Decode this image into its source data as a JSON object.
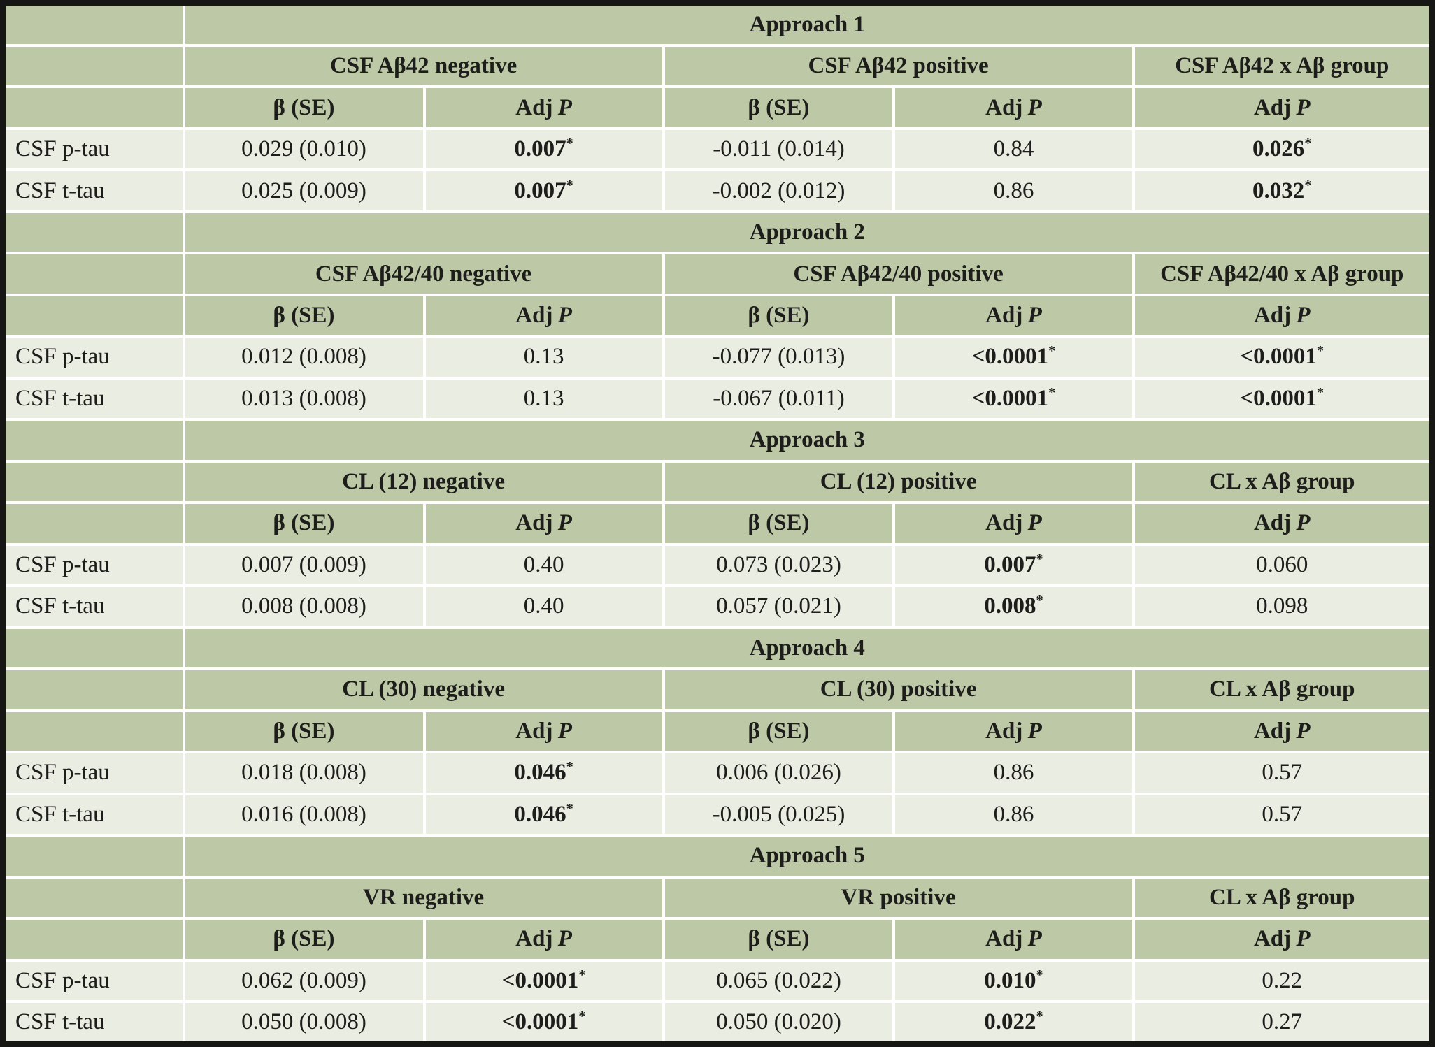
{
  "table": {
    "star_symbol": "*",
    "row_header_blank": "",
    "stat_header": {
      "beta_se": "β (SE)",
      "adj_prefix": "Adj",
      "adj_italic": "P"
    },
    "colors": {
      "header_bg": "#bdc9a6",
      "data_bg": "#eaede1",
      "grid": "#ffffff",
      "frame": "#161614",
      "text": "#1d1d1b"
    },
    "sections": [
      {
        "approach": "Approach 1",
        "negative": "CSF Aβ42 negative",
        "positive": "CSF Aβ42 positive",
        "interaction": "CSF Aβ42 x Aβ group",
        "rows": [
          {
            "label": "CSF p-tau",
            "cells": [
              {
                "v": "0.029 (0.010)"
              },
              {
                "v": "0.007",
                "bold": true,
                "star": true
              },
              {
                "v": "-0.011 (0.014)"
              },
              {
                "v": "0.84"
              },
              {
                "v": "0.026",
                "bold": true,
                "star": true
              }
            ]
          },
          {
            "label": "CSF t-tau",
            "cells": [
              {
                "v": "0.025 (0.009)"
              },
              {
                "v": "0.007",
                "bold": true,
                "star": true
              },
              {
                "v": "-0.002 (0.012)"
              },
              {
                "v": "0.86"
              },
              {
                "v": "0.032",
                "bold": true,
                "star": true
              }
            ]
          }
        ]
      },
      {
        "approach": "Approach 2",
        "negative": "CSF Aβ42/40 negative",
        "positive": "CSF Aβ42/40 positive",
        "interaction": "CSF Aβ42/40 x Aβ group",
        "rows": [
          {
            "label": "CSF p-tau",
            "cells": [
              {
                "v": "0.012 (0.008)"
              },
              {
                "v": "0.13"
              },
              {
                "v": "-0.077 (0.013)"
              },
              {
                "v": "<0.0001",
                "bold": true,
                "star": true
              },
              {
                "v": "<0.0001",
                "bold": true,
                "star": true
              }
            ]
          },
          {
            "label": "CSF t-tau",
            "cells": [
              {
                "v": "0.013 (0.008)"
              },
              {
                "v": "0.13"
              },
              {
                "v": "-0.067 (0.011)"
              },
              {
                "v": "<0.0001",
                "bold": true,
                "star": true
              },
              {
                "v": "<0.0001",
                "bold": true,
                "star": true
              }
            ]
          }
        ]
      },
      {
        "approach": "Approach 3",
        "negative": "CL (12) negative",
        "positive": "CL (12) positive",
        "interaction": "CL x Aβ group",
        "rows": [
          {
            "label": "CSF p-tau",
            "cells": [
              {
                "v": "0.007 (0.009)"
              },
              {
                "v": "0.40"
              },
              {
                "v": "0.073 (0.023)"
              },
              {
                "v": "0.007",
                "bold": true,
                "star": true
              },
              {
                "v": "0.060"
              }
            ]
          },
          {
            "label": "CSF t-tau",
            "cells": [
              {
                "v": "0.008 (0.008)"
              },
              {
                "v": "0.40"
              },
              {
                "v": "0.057 (0.021)"
              },
              {
                "v": "0.008",
                "bold": true,
                "star": true
              },
              {
                "v": "0.098"
              }
            ]
          }
        ]
      },
      {
        "approach": "Approach 4",
        "negative": "CL (30) negative",
        "positive": "CL (30) positive",
        "interaction": "CL x Aβ group",
        "rows": [
          {
            "label": "CSF p-tau",
            "cells": [
              {
                "v": "0.018 (0.008)"
              },
              {
                "v": "0.046",
                "bold": true,
                "star": true
              },
              {
                "v": "0.006 (0.026)"
              },
              {
                "v": "0.86"
              },
              {
                "v": "0.57"
              }
            ]
          },
          {
            "label": "CSF t-tau",
            "cells": [
              {
                "v": "0.016 (0.008)"
              },
              {
                "v": "0.046",
                "bold": true,
                "star": true
              },
              {
                "v": "-0.005 (0.025)"
              },
              {
                "v": "0.86"
              },
              {
                "v": "0.57"
              }
            ]
          }
        ]
      },
      {
        "approach": "Approach 5",
        "negative": "VR negative",
        "positive": "VR positive",
        "interaction": "CL x Aβ group",
        "rows": [
          {
            "label": "CSF p-tau",
            "cells": [
              {
                "v": "0.062 (0.009)"
              },
              {
                "v": "<0.0001",
                "bold": true,
                "star": true
              },
              {
                "v": "0.065 (0.022)"
              },
              {
                "v": "0.010",
                "bold": true,
                "star": true
              },
              {
                "v": "0.22"
              }
            ]
          },
          {
            "label": "CSF t-tau",
            "cells": [
              {
                "v": "0.050 (0.008)"
              },
              {
                "v": "<0.0001",
                "bold": true,
                "star": true
              },
              {
                "v": "0.050 (0.020)"
              },
              {
                "v": "0.022",
                "bold": true,
                "star": true
              },
              {
                "v": "0.27"
              }
            ]
          }
        ]
      }
    ]
  }
}
